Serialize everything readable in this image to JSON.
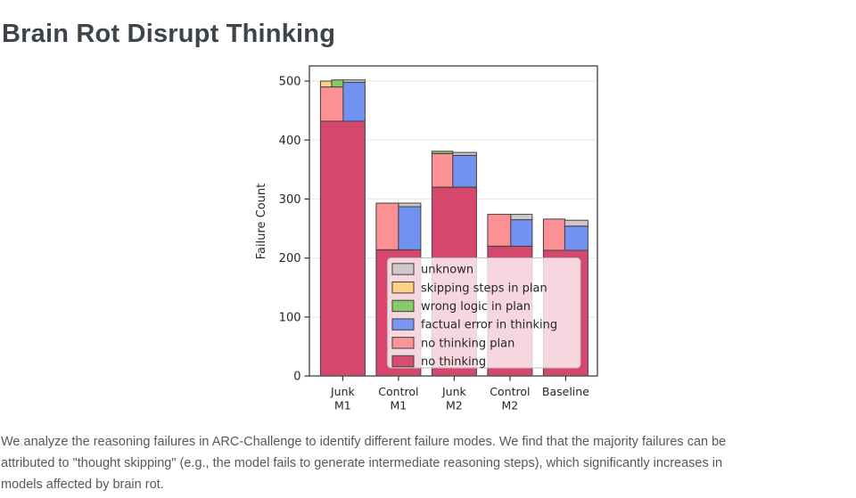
{
  "page": {
    "title": "Brain Rot Disrupt Thinking",
    "caption_lines": [
      "We analyze the reasoning failures in ARC-Challenge to identify different failure modes. We find that the majority failures can be",
      "attributed to \"thought skipping\" (e.g., the model fails to generate intermediate reasoning steps), which significantly increases in",
      "models affected by brain rot."
    ]
  },
  "chart_data": {
    "type": "bar",
    "subtype": "grouped-stacked-bar",
    "title": "",
    "xlabel": "",
    "ylabel": "Failure Count",
    "ylim": [
      0,
      525
    ],
    "yticks": [
      0,
      100,
      200,
      300,
      400,
      500
    ],
    "grid": "horizontal",
    "categories": [
      "Junk M1",
      "Control M1",
      "Junk M2",
      "Control M2",
      "Baseline"
    ],
    "category_label_lines": [
      [
        "Junk",
        "M1"
      ],
      [
        "Control",
        "M1"
      ],
      [
        "Junk",
        "M2"
      ],
      [
        "Control",
        "M2"
      ],
      [
        "Baseline"
      ]
    ],
    "legend": {
      "position": "lower-right-inside",
      "entries": [
        "unknown",
        "skipping steps in plan",
        "wrong logic in plan",
        "factual error in thinking",
        "no thinking plan",
        "no thinking"
      ]
    },
    "colors": {
      "unknown": "#cfc7c8",
      "skipping steps in plan": "#fbd27f",
      "wrong logic in plan": "#82c95f",
      "factual error in thinking": "#7292f2",
      "no thinking plan": "#fb9195",
      "no thinking": "#d6476d",
      "segment_border": "#414141",
      "frame": "#58585a",
      "gridline": "#ececec"
    },
    "groups": [
      {
        "category": "Junk M1",
        "counts": {
          "no thinking": 432,
          "no thinking plan": 58,
          "skipping steps in plan": 10,
          "wrong logic in plan": 12,
          "factual error in thinking": 66,
          "unknown": 4
        },
        "segments": [
          {
            "series": "no thinking",
            "x0": 0,
            "x1": 1,
            "v0": 0,
            "v1": 432
          },
          {
            "series": "no thinking plan",
            "x0": 0,
            "x1": 0.51,
            "v0": 432,
            "v1": 490
          },
          {
            "series": "skipping steps in plan",
            "x0": 0,
            "x1": 0.25,
            "v0": 490,
            "v1": 500
          },
          {
            "series": "wrong logic in plan",
            "x0": 0.25,
            "x1": 0.51,
            "v0": 490,
            "v1": 502
          },
          {
            "series": "factual error in thinking",
            "x0": 0.51,
            "x1": 1,
            "v0": 432,
            "v1": 498
          },
          {
            "series": "unknown",
            "x0": 0.51,
            "x1": 1,
            "v0": 498,
            "v1": 502
          }
        ]
      },
      {
        "category": "Control M1",
        "counts": {
          "no thinking": 214,
          "no thinking plan": 79,
          "skipping steps in plan": 0,
          "wrong logic in plan": 0,
          "factual error in thinking": 73,
          "unknown": 6
        },
        "segments": [
          {
            "series": "no thinking",
            "x0": 0,
            "x1": 1,
            "v0": 0,
            "v1": 214
          },
          {
            "series": "no thinking plan",
            "x0": 0,
            "x1": 0.5,
            "v0": 214,
            "v1": 293
          },
          {
            "series": "factual error in thinking",
            "x0": 0.5,
            "x1": 1,
            "v0": 214,
            "v1": 287
          },
          {
            "series": "unknown",
            "x0": 0.5,
            "x1": 1,
            "v0": 287,
            "v1": 293
          }
        ]
      },
      {
        "category": "Junk M2",
        "counts": {
          "no thinking": 320,
          "no thinking plan": 57,
          "skipping steps in plan": 0,
          "wrong logic in plan": 4,
          "factual error in thinking": 54,
          "unknown": 5
        },
        "segments": [
          {
            "series": "no thinking",
            "x0": 0,
            "x1": 1,
            "v0": 0,
            "v1": 320
          },
          {
            "series": "no thinking plan",
            "x0": 0,
            "x1": 0.47,
            "v0": 320,
            "v1": 377
          },
          {
            "series": "wrong logic in plan",
            "x0": 0,
            "x1": 0.47,
            "v0": 377,
            "v1": 381
          },
          {
            "series": "factual error in thinking",
            "x0": 0.47,
            "x1": 1,
            "v0": 320,
            "v1": 374
          },
          {
            "series": "unknown",
            "x0": 0.47,
            "x1": 1,
            "v0": 374,
            "v1": 379
          }
        ]
      },
      {
        "category": "Control M2",
        "counts": {
          "no thinking": 220,
          "no thinking plan": 54,
          "skipping steps in plan": 0,
          "wrong logic in plan": 0,
          "factual error in thinking": 45,
          "unknown": 9
        },
        "segments": [
          {
            "series": "no thinking",
            "x0": 0,
            "x1": 1,
            "v0": 0,
            "v1": 220
          },
          {
            "series": "no thinking plan",
            "x0": 0,
            "x1": 0.52,
            "v0": 220,
            "v1": 274
          },
          {
            "series": "factual error in thinking",
            "x0": 0.52,
            "x1": 1,
            "v0": 220,
            "v1": 265
          },
          {
            "series": "unknown",
            "x0": 0.52,
            "x1": 1,
            "v0": 265,
            "v1": 274
          }
        ]
      },
      {
        "category": "Baseline",
        "counts": {
          "no thinking": 213,
          "no thinking plan": 53,
          "skipping steps in plan": 0,
          "wrong logic in plan": 0,
          "factual error in thinking": 41,
          "unknown": 10
        },
        "segments": [
          {
            "series": "no thinking",
            "x0": 0,
            "x1": 1,
            "v0": 0,
            "v1": 213
          },
          {
            "series": "no thinking plan",
            "x0": 0,
            "x1": 0.48,
            "v0": 213,
            "v1": 266
          },
          {
            "series": "factual error in thinking",
            "x0": 0.48,
            "x1": 1,
            "v0": 213,
            "v1": 254
          },
          {
            "series": "unknown",
            "x0": 0.48,
            "x1": 1,
            "v0": 254,
            "v1": 264
          }
        ]
      }
    ]
  }
}
